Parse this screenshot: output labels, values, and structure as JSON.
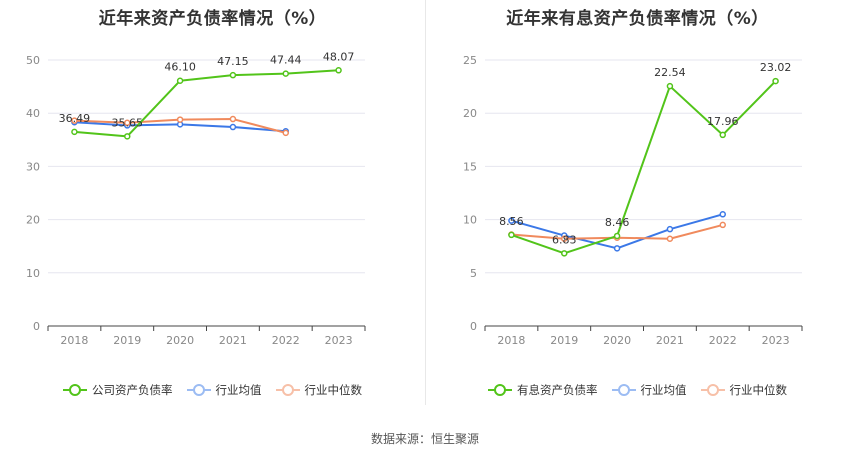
{
  "source_label": "数据来源：恒生聚源",
  "chart_data": [
    {
      "type": "line",
      "title": "近年来资产负债率情况（%）",
      "categories": [
        "2018",
        "2019",
        "2020",
        "2021",
        "2022",
        "2023"
      ],
      "ylim": [
        0,
        50
      ],
      "yticks": [
        0,
        10,
        20,
        30,
        40,
        50
      ],
      "xlabel": "",
      "ylabel": "",
      "grid": true,
      "legend_position": "bottom",
      "series": [
        {
          "name": "公司资产负债率",
          "color": "#52c41a",
          "values": [
            36.49,
            35.65,
            46.1,
            47.15,
            47.44,
            48.07
          ],
          "labels": [
            "36.49",
            "35.65",
            "46.10",
            "47.15",
            "47.44",
            "48.07"
          ]
        },
        {
          "name": "行业均值",
          "color": "#3b78e7",
          "values": [
            38.3,
            37.7,
            37.9,
            37.4,
            36.6,
            null
          ]
        },
        {
          "name": "行业中位数",
          "color": "#f08a5d",
          "values": [
            38.6,
            38.2,
            38.8,
            38.9,
            36.3,
            null
          ]
        }
      ]
    },
    {
      "type": "line",
      "title": "近年来有息资产负债率情况（%）",
      "categories": [
        "2018",
        "2019",
        "2020",
        "2021",
        "2022",
        "2023"
      ],
      "ylim": [
        0,
        25
      ],
      "yticks": [
        0,
        5,
        10,
        15,
        20,
        25
      ],
      "xlabel": "",
      "ylabel": "",
      "grid": true,
      "legend_position": "bottom",
      "series": [
        {
          "name": "有息资产负债率",
          "color": "#52c41a",
          "values": [
            8.56,
            6.83,
            8.46,
            22.54,
            17.96,
            23.02
          ],
          "labels": [
            "8.56",
            "6.83",
            "8.46",
            "22.54",
            "17.96",
            "23.02"
          ]
        },
        {
          "name": "行业均值",
          "color": "#3b78e7",
          "values": [
            9.9,
            8.5,
            7.3,
            9.1,
            10.5,
            null
          ]
        },
        {
          "name": "行业中位数",
          "color": "#f08a5d",
          "values": [
            8.6,
            8.2,
            8.3,
            8.2,
            9.5,
            null
          ]
        }
      ]
    }
  ]
}
